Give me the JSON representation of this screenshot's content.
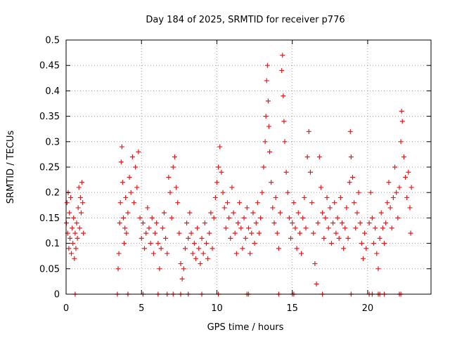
{
  "chart_data": {
    "type": "scatter",
    "title": "Day 184 of 2025, SRMTID for receiver p776",
    "xlabel": "GPS time / hours",
    "ylabel": "SRMTID / TECUs",
    "xlim": [
      0,
      24.2
    ],
    "ylim": [
      0,
      0.5
    ],
    "x_ticks": [
      0,
      5,
      10,
      15,
      20
    ],
    "x_tick_labels": [
      "0",
      "5",
      "10",
      "15",
      "20"
    ],
    "y_ticks": [
      0,
      0.05,
      0.1,
      0.15,
      0.2,
      0.25,
      0.3,
      0.35,
      0.4,
      0.45,
      0.5
    ],
    "y_tick_labels": [
      "0",
      "0.05",
      "0.1",
      "0.15",
      "0.2",
      "0.25",
      "0.3",
      "0.35",
      "0.4",
      "0.45",
      "0.5"
    ],
    "grid": true,
    "marker": "+",
    "series_color": "#e41a1c",
    "series": [
      {
        "name": "SRMTID",
        "points": [
          [
            0.02,
            0.14
          ],
          [
            0.06,
            0.18
          ],
          [
            0.1,
            0.12
          ],
          [
            0.14,
            0.2
          ],
          [
            0.18,
            0.09
          ],
          [
            0.22,
            0.16
          ],
          [
            0.26,
            0.11
          ],
          [
            0.3,
            0.19
          ],
          [
            0.35,
            0.08
          ],
          [
            0.4,
            0.13
          ],
          [
            0.45,
            0.1
          ],
          [
            0.5,
            0.15
          ],
          [
            0.55,
            0.07
          ],
          [
            0.6,
            0.12
          ],
          [
            0.65,
            0.09
          ],
          [
            0.7,
            0.14
          ],
          [
            0.75,
            0.11
          ],
          [
            0.8,
            0.17
          ],
          [
            0.85,
            0.21
          ],
          [
            0.9,
            0.13
          ],
          [
            0.95,
            0.19
          ],
          [
            1.0,
            0.16
          ],
          [
            1.05,
            0.22
          ],
          [
            1.1,
            0.18
          ],
          [
            1.15,
            0.12
          ],
          [
            3.45,
            0.05
          ],
          [
            3.5,
            0.08
          ],
          [
            3.55,
            0.14
          ],
          [
            3.6,
            0.18
          ],
          [
            3.65,
            0.26
          ],
          [
            3.7,
            0.29
          ],
          [
            3.75,
            0.22
          ],
          [
            3.8,
            0.15
          ],
          [
            3.85,
            0.1
          ],
          [
            3.9,
            0.13
          ],
          [
            3.95,
            0.19
          ],
          [
            4.0,
            0.12
          ],
          [
            4.1,
            0.16
          ],
          [
            4.2,
            0.23
          ],
          [
            4.3,
            0.2
          ],
          [
            4.4,
            0.27
          ],
          [
            4.5,
            0.18
          ],
          [
            4.6,
            0.25
          ],
          [
            4.7,
            0.21
          ],
          [
            4.8,
            0.28
          ],
          [
            4.9,
            0.15
          ],
          [
            5.0,
            0.11
          ],
          [
            5.1,
            0.14
          ],
          [
            5.2,
            0.09
          ],
          [
            5.3,
            0.12
          ],
          [
            5.4,
            0.17
          ],
          [
            5.5,
            0.13
          ],
          [
            5.6,
            0.1
          ],
          [
            5.7,
            0.15
          ],
          [
            5.8,
            0.08
          ],
          [
            5.9,
            0.12
          ],
          [
            6.0,
            0.14
          ],
          [
            6.1,
            0.1
          ],
          [
            6.2,
            0.05
          ],
          [
            6.3,
            0.09
          ],
          [
            6.4,
            0.13
          ],
          [
            6.5,
            0.16
          ],
          [
            6.6,
            0.11
          ],
          [
            6.7,
            0.08
          ],
          [
            6.8,
            0.23
          ],
          [
            6.9,
            0.2
          ],
          [
            7.0,
            0.15
          ],
          [
            7.1,
            0.25
          ],
          [
            7.2,
            0.27
          ],
          [
            7.3,
            0.21
          ],
          [
            7.4,
            0.18
          ],
          [
            7.5,
            0.12
          ],
          [
            7.6,
            0.06
          ],
          [
            7.7,
            0.03
          ],
          [
            7.8,
            0.05
          ],
          [
            7.9,
            0.09
          ],
          [
            8.0,
            0.14
          ],
          [
            8.1,
            0.11
          ],
          [
            8.2,
            0.16
          ],
          [
            8.3,
            0.12
          ],
          [
            8.4,
            0.08
          ],
          [
            8.5,
            0.1
          ],
          [
            8.6,
            0.07
          ],
          [
            8.7,
            0.13
          ],
          [
            8.8,
            0.09
          ],
          [
            8.9,
            0.06
          ],
          [
            9.0,
            0.11
          ],
          [
            9.1,
            0.08
          ],
          [
            9.2,
            0.14
          ],
          [
            9.3,
            0.1
          ],
          [
            9.4,
            0.07
          ],
          [
            9.5,
            0.12
          ],
          [
            9.6,
            0.16
          ],
          [
            9.7,
            0.09
          ],
          [
            9.8,
            0.15
          ],
          [
            9.9,
            0.19
          ],
          [
            10.0,
            0.22
          ],
          [
            10.1,
            0.25
          ],
          [
            10.2,
            0.29
          ],
          [
            10.3,
            0.24
          ],
          [
            10.4,
            0.2
          ],
          [
            10.5,
            0.17
          ],
          [
            10.6,
            0.13
          ],
          [
            10.7,
            0.18
          ],
          [
            10.8,
            0.15
          ],
          [
            10.9,
            0.11
          ],
          [
            11.0,
            0.21
          ],
          [
            11.1,
            0.16
          ],
          [
            11.2,
            0.12
          ],
          [
            11.3,
            0.08
          ],
          [
            11.4,
            0.14
          ],
          [
            11.5,
            0.18
          ],
          [
            11.6,
            0.13
          ],
          [
            11.7,
            0.09
          ],
          [
            11.8,
            0.15
          ],
          [
            11.9,
            0.11
          ],
          [
            12.0,
            0.17
          ],
          [
            12.1,
            0.13
          ],
          [
            12.2,
            0.08
          ],
          [
            12.3,
            0.12
          ],
          [
            12.4,
            0.16
          ],
          [
            12.5,
            0.1
          ],
          [
            12.6,
            0.14
          ],
          [
            12.7,
            0.18
          ],
          [
            12.8,
            0.12
          ],
          [
            12.9,
            0.15
          ],
          [
            13.0,
            0.2
          ],
          [
            13.1,
            0.25
          ],
          [
            13.2,
            0.3
          ],
          [
            13.25,
            0.35
          ],
          [
            13.3,
            0.42
          ],
          [
            13.35,
            0.45
          ],
          [
            13.4,
            0.38
          ],
          [
            13.45,
            0.33
          ],
          [
            13.5,
            0.28
          ],
          [
            13.6,
            0.22
          ],
          [
            13.7,
            0.17
          ],
          [
            13.8,
            0.14
          ],
          [
            13.9,
            0.19
          ],
          [
            14.0,
            0.12
          ],
          [
            14.1,
            0.09
          ],
          [
            14.2,
            0.16
          ],
          [
            14.3,
            0.44
          ],
          [
            14.35,
            0.47
          ],
          [
            14.4,
            0.39
          ],
          [
            14.45,
            0.34
          ],
          [
            14.5,
            0.3
          ],
          [
            14.6,
            0.24
          ],
          [
            14.7,
            0.2
          ],
          [
            14.8,
            0.15
          ],
          [
            14.9,
            0.11
          ],
          [
            15.0,
            0.14
          ],
          [
            15.1,
            0.18
          ],
          [
            15.2,
            0.13
          ],
          [
            15.3,
            0.09
          ],
          [
            15.4,
            0.16
          ],
          [
            15.5,
            0.12
          ],
          [
            15.6,
            0.08
          ],
          [
            15.7,
            0.15
          ],
          [
            15.8,
            0.19
          ],
          [
            15.9,
            0.13
          ],
          [
            16.0,
            0.27
          ],
          [
            16.1,
            0.32
          ],
          [
            16.2,
            0.24
          ],
          [
            16.3,
            0.18
          ],
          [
            16.4,
            0.12
          ],
          [
            16.5,
            0.06
          ],
          [
            16.6,
            0.02
          ],
          [
            16.7,
            0.14
          ],
          [
            16.8,
            0.27
          ],
          [
            16.9,
            0.21
          ],
          [
            17.0,
            0.16
          ],
          [
            17.1,
            0.11
          ],
          [
            17.2,
            0.15
          ],
          [
            17.3,
            0.19
          ],
          [
            17.4,
            0.13
          ],
          [
            17.5,
            0.17
          ],
          [
            17.6,
            0.1
          ],
          [
            17.7,
            0.14
          ],
          [
            17.8,
            0.18
          ],
          [
            17.9,
            0.12
          ],
          [
            18.0,
            0.15
          ],
          [
            18.1,
            0.11
          ],
          [
            18.2,
            0.19
          ],
          [
            18.3,
            0.14
          ],
          [
            18.4,
            0.09
          ],
          [
            18.5,
            0.13
          ],
          [
            18.6,
            0.17
          ],
          [
            18.7,
            0.11
          ],
          [
            18.8,
            0.22
          ],
          [
            18.85,
            0.32
          ],
          [
            18.9,
            0.27
          ],
          [
            19.0,
            0.23
          ],
          [
            19.1,
            0.18
          ],
          [
            19.2,
            0.13
          ],
          [
            19.3,
            0.16
          ],
          [
            19.4,
            0.2
          ],
          [
            19.5,
            0.14
          ],
          [
            19.6,
            0.1
          ],
          [
            19.7,
            0.07
          ],
          [
            19.8,
            0.12
          ],
          [
            19.9,
            0.09
          ],
          [
            20.1,
            0.14
          ],
          [
            20.2,
            0.2
          ],
          [
            20.3,
            0.15
          ],
          [
            20.4,
            0.1
          ],
          [
            20.5,
            0.13
          ],
          [
            20.6,
            0.08
          ],
          [
            20.7,
            0.05
          ],
          [
            20.8,
            0.11
          ],
          [
            20.9,
            0.16
          ],
          [
            21.0,
            0.13
          ],
          [
            21.1,
            0.1
          ],
          [
            21.2,
            0.14
          ],
          [
            21.3,
            0.18
          ],
          [
            21.4,
            0.22
          ],
          [
            21.5,
            0.17
          ],
          [
            21.6,
            0.13
          ],
          [
            21.7,
            0.19
          ],
          [
            21.8,
            0.25
          ],
          [
            21.9,
            0.2
          ],
          [
            22.0,
            0.15
          ],
          [
            22.1,
            0.21
          ],
          [
            22.2,
            0.3
          ],
          [
            22.25,
            0.36
          ],
          [
            22.3,
            0.34
          ],
          [
            22.4,
            0.27
          ],
          [
            22.5,
            0.23
          ],
          [
            22.6,
            0.19
          ],
          [
            22.7,
            0.24
          ],
          [
            22.8,
            0.17
          ],
          [
            22.85,
            0.12
          ],
          [
            22.9,
            0.21
          ]
        ]
      }
    ],
    "zero_points": [
      0.6,
      3.4,
      4.1,
      5.1,
      6.1,
      6.7,
      7.1,
      7.6,
      8.1,
      9.0,
      10.1,
      12.0,
      12.1,
      14.1,
      15.0,
      15.1,
      17.0,
      18.9,
      20.1,
      20.3,
      20.7,
      20.8,
      21.1,
      22.1,
      22.2
    ]
  }
}
